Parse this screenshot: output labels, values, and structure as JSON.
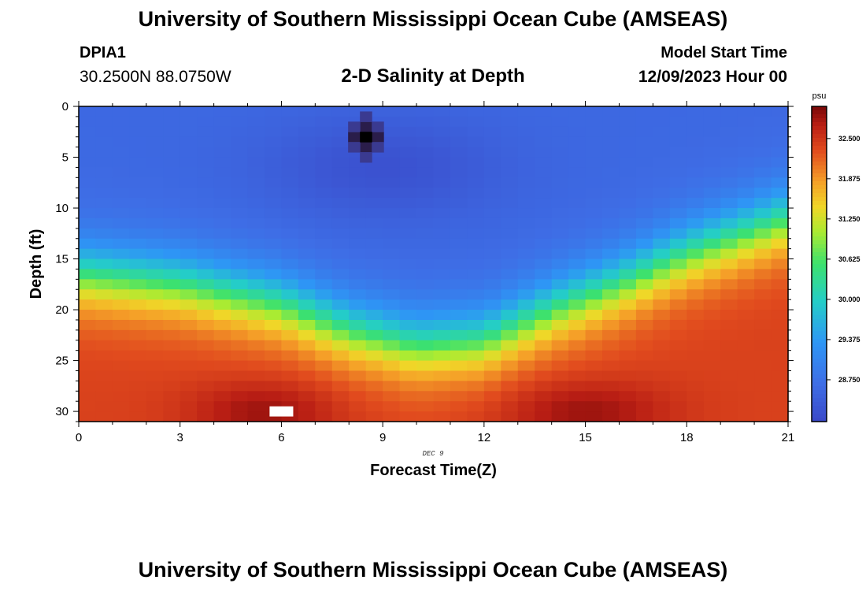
{
  "header": {
    "title": "University of Southern Mississippi Ocean Cube (AMSEAS)",
    "station_id": "DPIA1",
    "coords": "30.2500N  88.0750W",
    "chart_title": "2-D Salinity at Depth",
    "model_start_label": "Model Start Time",
    "model_start_value": "12/09/2023 Hour 00"
  },
  "footer": {
    "title": "University of Southern Mississippi Ocean Cube (AMSEAS)"
  },
  "chart_data": {
    "type": "heatmap",
    "title": "2-D Salinity at Depth",
    "xlabel": "Forecast Time(Z)",
    "ylabel": "Depth (ft)",
    "x_note": "DEC 9",
    "xlim": [
      0,
      21
    ],
    "ylim": [
      31,
      0
    ],
    "x_ticks": [
      0,
      3,
      6,
      9,
      12,
      15,
      18,
      21
    ],
    "y_ticks": [
      0,
      5,
      10,
      15,
      20,
      25,
      30
    ],
    "colorbar": {
      "unit": "psu",
      "min": 28.1,
      "max": 33.0,
      "ticks": [
        "32.500",
        "31.875",
        "31.250",
        "30.625",
        "30.000",
        "29.375",
        "28.750"
      ],
      "tick_values": [
        32.5,
        31.875,
        31.25,
        30.625,
        30.0,
        29.375,
        28.75
      ]
    },
    "grid": {
      "dx_hours": 0.5,
      "dz_ft": 1,
      "x_start": 0,
      "x_end": 21,
      "z_start": 0,
      "z_end": 31
    },
    "surface_salinity": 28.6,
    "bottom_salinity": 32.4,
    "halocline_depth_ft": [
      [
        0,
        16.5
      ],
      [
        3,
        17.5
      ],
      [
        6,
        19.5
      ],
      [
        8,
        22
      ],
      [
        10,
        23.5
      ],
      [
        12,
        23
      ],
      [
        14,
        20
      ],
      [
        16,
        17.5
      ],
      [
        18,
        14.5
      ],
      [
        21,
        11
      ]
    ],
    "surface_layer_min_salinity": 28.2,
    "deep_max_salinity": 32.95,
    "anomalies": [
      {
        "label": "low-salinity anomaly",
        "time_hours": 8.5,
        "depth_ft": 3,
        "salinity": 25.0
      },
      {
        "label": "missing data",
        "time_hours": 6.0,
        "depth_ft": 30,
        "salinity": null
      }
    ]
  }
}
